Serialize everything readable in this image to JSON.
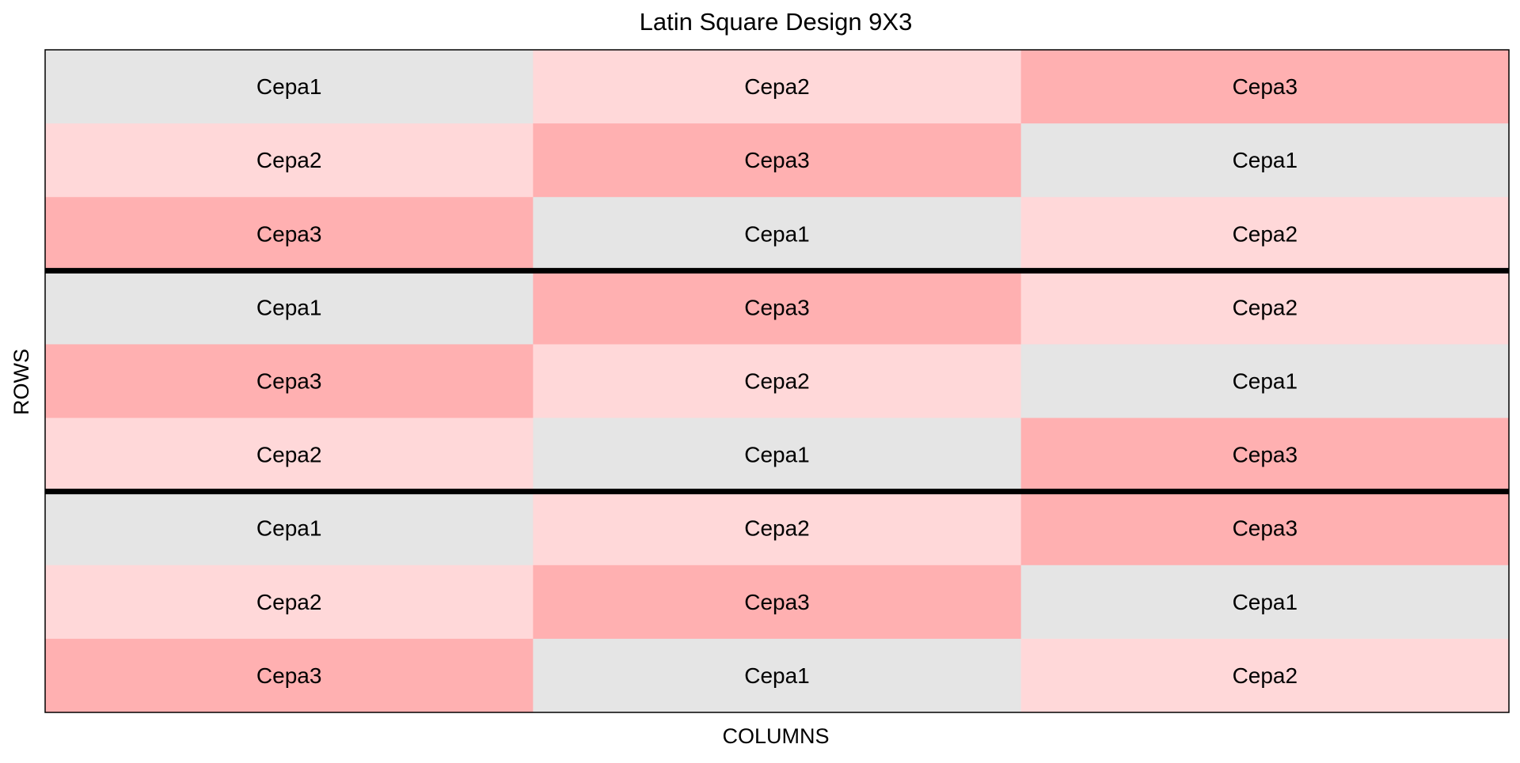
{
  "chart_data": {
    "type": "heatmap",
    "title": "Latin Square Design 9X3",
    "xlabel": "COLUMNS",
    "ylabel": "ROWS",
    "rows": 9,
    "columns": 3,
    "cells": [
      [
        "Cepa1",
        "Cepa2",
        "Cepa3"
      ],
      [
        "Cepa2",
        "Cepa3",
        "Cepa1"
      ],
      [
        "Cepa3",
        "Cepa1",
        "Cepa2"
      ],
      [
        "Cepa1",
        "Cepa3",
        "Cepa2"
      ],
      [
        "Cepa3",
        "Cepa2",
        "Cepa1"
      ],
      [
        "Cepa2",
        "Cepa1",
        "Cepa3"
      ],
      [
        "Cepa1",
        "Cepa2",
        "Cepa3"
      ],
      [
        "Cepa2",
        "Cepa3",
        "Cepa1"
      ],
      [
        "Cepa3",
        "Cepa1",
        "Cepa2"
      ]
    ],
    "block_separators_after_rows": [
      3,
      6
    ],
    "fill_colors": {
      "Cepa1": "#e5e5e5",
      "Cepa2": "#ffd8d9",
      "Cepa3": "#ffb0b1"
    },
    "border_color": "#000000",
    "legend": "none",
    "grid": false
  }
}
